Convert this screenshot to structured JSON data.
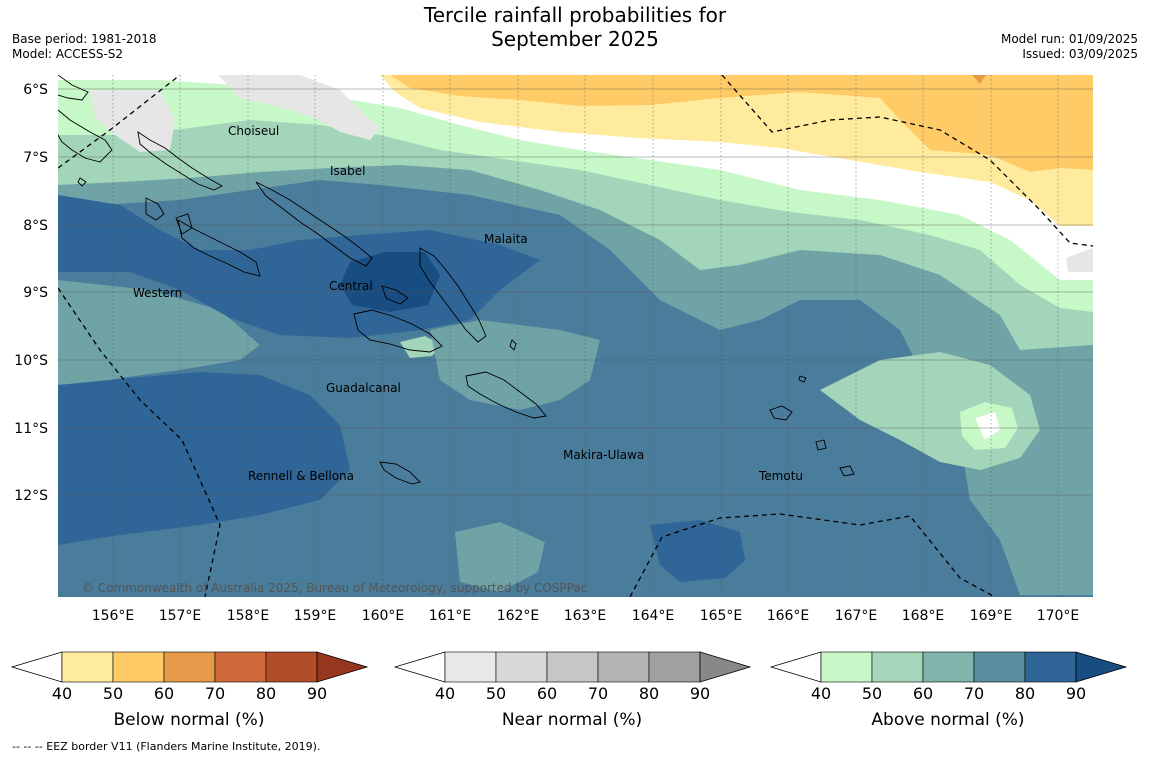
{
  "header": {
    "title_line1": "Tercile rainfall probabilities for",
    "title_line2": "September 2025",
    "base_period": "Base period: 1981-2018",
    "model": "Model: ACCESS-S2",
    "model_run": "Model run: 01/09/2025",
    "issued": "Issued: 03/09/2025"
  },
  "map": {
    "lat_labels": [
      "6°S",
      "7°S",
      "8°S",
      "9°S",
      "10°S",
      "11°S",
      "12°S"
    ],
    "lon_labels": [
      "156°E",
      "157°E",
      "158°E",
      "159°E",
      "160°E",
      "161°E",
      "162°E",
      "163°E",
      "164°E",
      "165°E",
      "166°E",
      "167°E",
      "168°E",
      "169°E",
      "170°E"
    ],
    "places": [
      "Choiseul",
      "Isabel",
      "Malaita",
      "Western",
      "Central",
      "Guadalcanal",
      "Rennell & Bellona",
      "Makira-Ulawa",
      "Temotu"
    ],
    "credit": "© Commonwealth of Australia 2025, Bureau of Meteorology, supported by COSPPac"
  },
  "legend": {
    "below_label": "Below normal (%)",
    "near_label": "Near normal (%)",
    "above_label": "Above normal (%)",
    "ticks": [
      "40",
      "50",
      "60",
      "70",
      "80",
      "90"
    ],
    "below_colors": [
      "#ffffff",
      "#ffeb9e",
      "#ffcb66",
      "#e69a4a",
      "#d06a3a",
      "#b04e2a",
      "#97361f"
    ],
    "near_colors": [
      "#ffffff",
      "#e8e8e8",
      "#d8d8d8",
      "#c6c6c6",
      "#b3b3b3",
      "#a0a0a0",
      "#888888"
    ],
    "above_colors": [
      "#ffffff",
      "#c8f8c8",
      "#a5d6ba",
      "#80b5ab",
      "#5a8fa0",
      "#306598",
      "#184d82"
    ]
  },
  "footnote": "--  --  -- EEZ border V11 (Flanders Marine Institute, 2019)."
}
